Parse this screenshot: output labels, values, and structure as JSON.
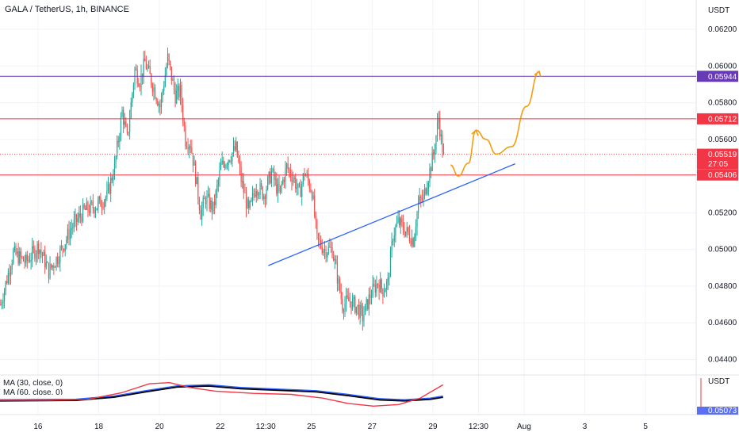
{
  "header": {
    "symbol_title": "GALA / TetherUS, 1h, BINANCE"
  },
  "price_axis": {
    "currency": "USDT",
    "bottom_currency": "USDT"
  },
  "indicators": {
    "ma30_label": "MA (30, close, 0)",
    "ma60_label": "MA (60, close, 0)",
    "bottom_value": "0.05073"
  },
  "colors": {
    "resistance_purple": "#673ab7",
    "red_line": "#f23645",
    "trendline": "#2962ff",
    "projection": "#f59d0f",
    "candle_up": "#26a69a",
    "candle_down": "#ef5350",
    "ma30": "#f23645",
    "ma60_blue": "#2962ff",
    "ma60_black": "#000000"
  },
  "chart_data": {
    "type": "candlestick",
    "title": "GALA / TetherUS, 1h, BINANCE",
    "y_axis": {
      "range": [
        0.0432,
        0.0636
      ],
      "ticks": [
        "0.06200",
        "0.06000",
        "0.05800",
        "0.05600",
        "0.05400",
        "0.05200",
        "0.05000",
        "0.04800",
        "0.04600",
        "0.04400"
      ]
    },
    "x_axis": {
      "ticks": [
        {
          "label": "16",
          "i": 30
        },
        {
          "label": "18",
          "i": 78
        },
        {
          "label": "20",
          "i": 126
        },
        {
          "label": "22",
          "i": 174
        },
        {
          "label": "12:30",
          "i": 210
        },
        {
          "label": "25",
          "i": 246
        },
        {
          "label": "27",
          "i": 294
        },
        {
          "label": "29",
          "i": 342
        },
        {
          "label": "12:30",
          "i": 378
        },
        {
          "label": "Aug",
          "i": 414
        },
        {
          "label": "3",
          "i": 462
        },
        {
          "label": "5",
          "i": 510
        }
      ],
      "bars_total": 550
    },
    "price_labels": [
      {
        "value": "0.05944",
        "price": 0.05944,
        "kind": "purple"
      },
      {
        "value": "0.05712",
        "price": 0.05712,
        "kind": "red"
      },
      {
        "value": "0.05519",
        "price": 0.05519,
        "kind": "current",
        "countdown": "27:05"
      },
      {
        "value": "0.05406",
        "price": 0.05406,
        "kind": "red"
      }
    ],
    "horizontal_lines": [
      0.05944,
      0.05712,
      0.05406
    ],
    "current_price": 0.05519,
    "trendline": {
      "from": [
        212,
        0.04912
      ],
      "to": [
        407,
        0.05467
      ]
    },
    "projection": [
      {
        "i": 356,
        "p": 0.0546
      },
      {
        "i": 362,
        "p": 0.054
      },
      {
        "i": 370,
        "p": 0.0547
      },
      {
        "i": 376,
        "p": 0.0565
      },
      {
        "i": 384,
        "p": 0.056
      },
      {
        "i": 392,
        "p": 0.0552
      },
      {
        "i": 404,
        "p": 0.0556
      },
      {
        "i": 416,
        "p": 0.0578
      },
      {
        "i": 426,
        "p": 0.0597
      }
    ],
    "price_path": [
      [
        0,
        0.047
      ],
      [
        10,
        0.0498
      ],
      [
        20,
        0.0493
      ],
      [
        30,
        0.0502
      ],
      [
        38,
        0.0488
      ],
      [
        46,
        0.0497
      ],
      [
        56,
        0.0512
      ],
      [
        66,
        0.0521
      ],
      [
        76,
        0.0524
      ],
      [
        84,
        0.0529
      ],
      [
        90,
        0.0545
      ],
      [
        96,
        0.0575
      ],
      [
        100,
        0.056
      ],
      [
        106,
        0.0598
      ],
      [
        110,
        0.0592
      ],
      [
        114,
        0.0602
      ],
      [
        120,
        0.059
      ],
      [
        126,
        0.0578
      ],
      [
        132,
        0.0604
      ],
      [
        138,
        0.0584
      ],
      [
        142,
        0.0586
      ],
      [
        146,
        0.056
      ],
      [
        150,
        0.0558
      ],
      [
        154,
        0.054
      ],
      [
        158,
        0.052
      ],
      [
        162,
        0.0528
      ],
      [
        168,
        0.0522
      ],
      [
        174,
        0.0545
      ],
      [
        180,
        0.055
      ],
      [
        186,
        0.0555
      ],
      [
        190,
        0.0538
      ],
      [
        196,
        0.052
      ],
      [
        202,
        0.0535
      ],
      [
        208,
        0.053
      ],
      [
        214,
        0.0542
      ],
      [
        220,
        0.053
      ],
      [
        226,
        0.0545
      ],
      [
        232,
        0.0538
      ],
      [
        236,
        0.053
      ],
      [
        240,
        0.0542
      ],
      [
        246,
        0.0532
      ],
      [
        250,
        0.0505
      ],
      [
        256,
        0.05
      ],
      [
        262,
        0.05
      ],
      [
        266,
        0.0485
      ],
      [
        270,
        0.047
      ],
      [
        276,
        0.0472
      ],
      [
        282,
        0.0468
      ],
      [
        286,
        0.0463
      ],
      [
        292,
        0.0475
      ],
      [
        298,
        0.0482
      ],
      [
        302,
        0.0478
      ],
      [
        306,
        0.0482
      ],
      [
        310,
        0.0508
      ],
      [
        314,
        0.0515
      ],
      [
        320,
        0.051
      ],
      [
        326,
        0.0505
      ],
      [
        330,
        0.0525
      ],
      [
        334,
        0.0528
      ],
      [
        338,
        0.054
      ],
      [
        342,
        0.0552
      ],
      [
        344,
        0.0562
      ],
      [
        346,
        0.0572
      ],
      [
        348,
        0.056
      ],
      [
        350,
        0.0551
      ]
    ],
    "ma30": [
      [
        0,
        0.0491
      ],
      [
        40,
        0.0491
      ],
      [
        70,
        0.0493
      ],
      [
        96,
        0.0505
      ],
      [
        118,
        0.0522
      ],
      [
        134,
        0.0524
      ],
      [
        150,
        0.0515
      ],
      [
        170,
        0.0508
      ],
      [
        200,
        0.0504
      ],
      [
        230,
        0.0502
      ],
      [
        255,
        0.0495
      ],
      [
        275,
        0.0485
      ],
      [
        295,
        0.048
      ],
      [
        315,
        0.0483
      ],
      [
        332,
        0.0495
      ],
      [
        350,
        0.052
      ]
    ],
    "ma60": [
      [
        0,
        0.049
      ],
      [
        60,
        0.0491
      ],
      [
        90,
        0.0497
      ],
      [
        115,
        0.0507
      ],
      [
        140,
        0.0516
      ],
      [
        165,
        0.0518
      ],
      [
        190,
        0.0513
      ],
      [
        220,
        0.051
      ],
      [
        250,
        0.0507
      ],
      [
        275,
        0.05
      ],
      [
        300,
        0.0492
      ],
      [
        320,
        0.049
      ],
      [
        340,
        0.0493
      ],
      [
        350,
        0.0497
      ]
    ]
  }
}
